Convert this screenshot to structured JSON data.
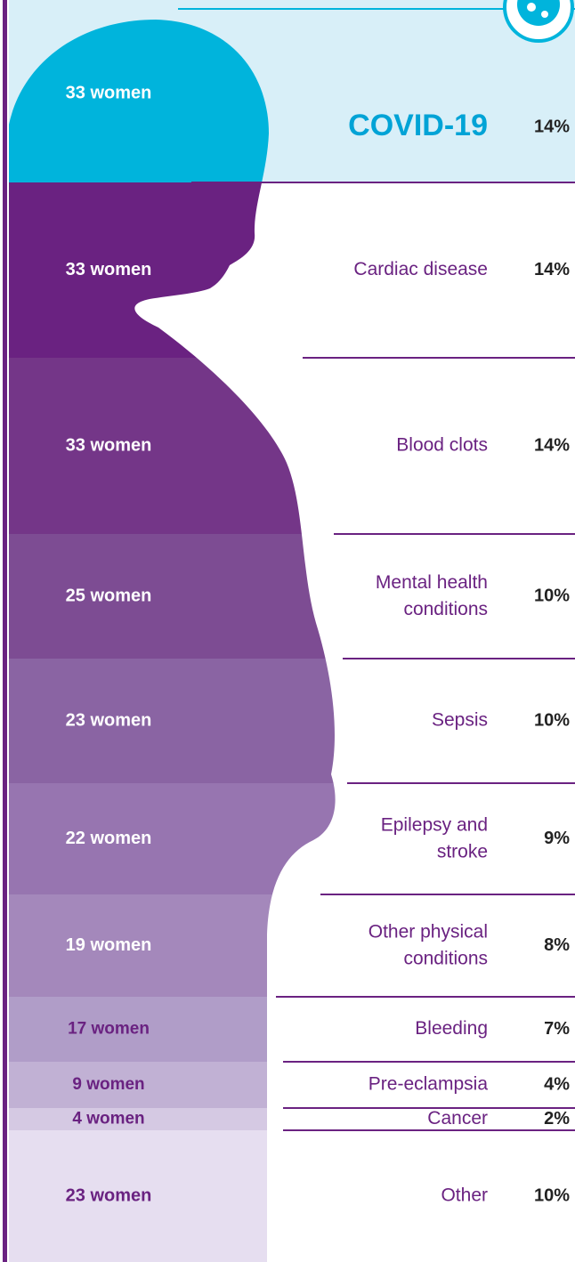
{
  "rows": [
    {
      "women": "33 women",
      "cause": "COVID-19",
      "percent": "14%"
    },
    {
      "women": "33 women",
      "cause": "Cardiac disease",
      "percent": "14%"
    },
    {
      "women": "33 women",
      "cause": "Blood clots",
      "percent": "14%"
    },
    {
      "women": "25 women",
      "cause": "Mental health conditions",
      "percent": "10%"
    },
    {
      "women": "23 women",
      "cause": "Sepsis",
      "percent": "10%"
    },
    {
      "women": "22 women",
      "cause": "Epilepsy and stroke",
      "percent": "9%"
    },
    {
      "women": "19 women",
      "cause": "Other physical conditions",
      "percent": "8%"
    },
    {
      "women": "17 women",
      "cause": "Bleeding",
      "percent": "7%"
    },
    {
      "women": "9 women",
      "cause": "Pre-eclampsia",
      "percent": "4%"
    },
    {
      "women": "4 women",
      "cause": "Cancer",
      "percent": "2%"
    },
    {
      "women": "23 women",
      "cause": "Other",
      "percent": "10%"
    }
  ]
}
